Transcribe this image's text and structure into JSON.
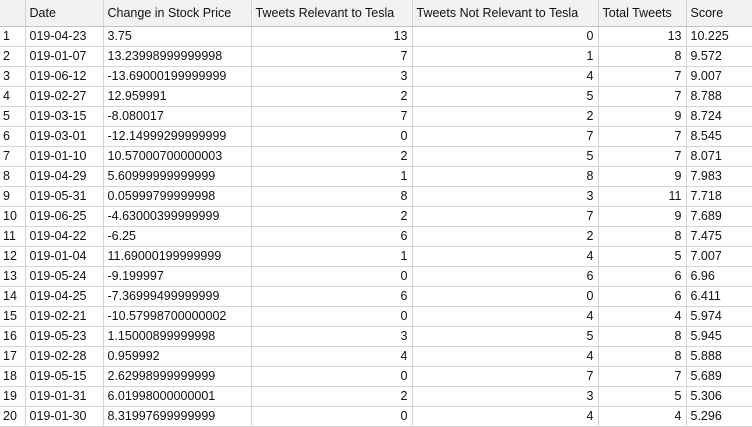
{
  "table": {
    "columns": [
      "Date",
      "Change in Stock Price",
      "Tweets Relevant to Tesla",
      "Tweets Not Relevant to Tesla",
      "Total Tweets",
      "Score"
    ],
    "rows": [
      [
        "1",
        "019-04-23",
        "3.75",
        "13",
        "0",
        "13",
        "10.225"
      ],
      [
        "2",
        "019-01-07",
        "13.23998999999998",
        "7",
        "1",
        "8",
        "9.572"
      ],
      [
        "3",
        "019-06-12",
        "-13.69000199999999",
        "3",
        "4",
        "7",
        "9.007"
      ],
      [
        "4",
        "019-02-27",
        "12.959991",
        "2",
        "5",
        "7",
        "8.788"
      ],
      [
        "5",
        "019-03-15",
        "-8.080017",
        "7",
        "2",
        "9",
        "8.724"
      ],
      [
        "6",
        "019-03-01",
        "-12.14999299999999",
        "0",
        "7",
        "7",
        "8.545"
      ],
      [
        "7",
        "019-01-10",
        "10.57000700000003",
        "2",
        "5",
        "7",
        "8.071"
      ],
      [
        "8",
        "019-04-29",
        "5.60999999999999",
        "1",
        "8",
        "9",
        "7.983"
      ],
      [
        "9",
        "019-05-31",
        "0.05999799999998",
        "8",
        "3",
        "11",
        "7.718"
      ],
      [
        "10",
        "019-06-25",
        "-4.63000399999999",
        "2",
        "7",
        "9",
        "7.689"
      ],
      [
        "11",
        "019-04-22",
        "-6.25",
        "6",
        "2",
        "8",
        "7.475"
      ],
      [
        "12",
        "019-01-04",
        "11.69000199999999",
        "1",
        "4",
        "5",
        "7.007"
      ],
      [
        "13",
        "019-05-24",
        "-9.199997",
        "0",
        "6",
        "6",
        "6.96"
      ],
      [
        "14",
        "019-04-25",
        "-7.36999499999999",
        "6",
        "0",
        "6",
        "6.411"
      ],
      [
        "15",
        "019-02-21",
        "-10.57998700000002",
        "0",
        "4",
        "4",
        "5.974"
      ],
      [
        "16",
        "019-05-23",
        "1.15000899999998",
        "3",
        "5",
        "8",
        "5.945"
      ],
      [
        "17",
        "019-02-28",
        "0.959992",
        "4",
        "4",
        "8",
        "5.888"
      ],
      [
        "18",
        "019-05-15",
        "2.62998999999999",
        "0",
        "7",
        "7",
        "5.689"
      ],
      [
        "19",
        "019-01-31",
        "6.01998000000001",
        "2",
        "3",
        "5",
        "5.306"
      ],
      [
        "20",
        "019-01-30",
        "8.31997699999999",
        "0",
        "4",
        "4",
        "5.296"
      ]
    ]
  }
}
